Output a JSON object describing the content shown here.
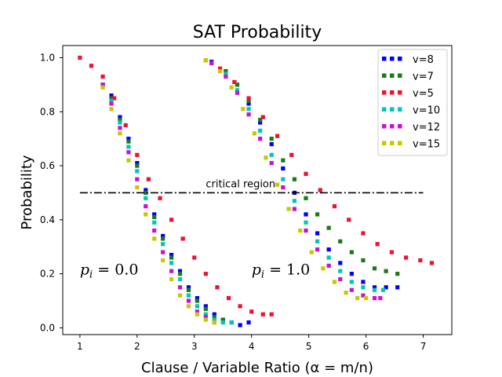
{
  "chart_data": {
    "type": "scatter",
    "title": "SAT Probability",
    "xlabel": "Clause / Variable Ratio (α = m/n)",
    "ylabel": "Probability",
    "xlim": [
      0.7,
      7.5
    ],
    "ylim": [
      -0.025,
      1.045
    ],
    "xticks": [
      1,
      2,
      3,
      4,
      5,
      6,
      7
    ],
    "yticks": [
      0.0,
      0.2,
      0.4,
      0.6,
      0.8,
      1.0
    ],
    "xtick_labels": [
      "1",
      "2",
      "3",
      "4",
      "5",
      "6",
      "7"
    ],
    "ytick_labels": [
      "0.0",
      "0.2",
      "0.4",
      "0.6",
      "0.8",
      "1.0"
    ],
    "legend_position": "top-right",
    "annotations": {
      "critical_label": "critical region",
      "critical_y": 0.5,
      "critical_x_range": [
        1.0,
        7.0
      ],
      "critical_label_x": 3.2,
      "panel_left": "p_i = 0.0",
      "panel_left_sub": "i",
      "panel_left_pre": "p",
      "panel_left_post": " = 0.0",
      "panel_left_pos": [
        1.0,
        0.2
      ],
      "panel_right_pre": "p",
      "panel_right_sub": "i",
      "panel_right_post": " = 1.0",
      "panel_right_pos": [
        4.0,
        0.2
      ]
    },
    "series": [
      {
        "name": "v=8",
        "color": "#0000ff",
        "left": [
          [
            1.4,
            0.9
          ],
          [
            1.55,
            0.86
          ],
          [
            1.7,
            0.78
          ],
          [
            1.85,
            0.7
          ],
          [
            2.0,
            0.61
          ],
          [
            2.15,
            0.51
          ],
          [
            2.3,
            0.42
          ],
          [
            2.45,
            0.34
          ],
          [
            2.6,
            0.27
          ],
          [
            2.75,
            0.21
          ],
          [
            2.9,
            0.15
          ],
          [
            3.05,
            0.11
          ],
          [
            3.2,
            0.08
          ],
          [
            3.35,
            0.05
          ],
          [
            3.5,
            0.03
          ],
          [
            3.65,
            0.02
          ],
          [
            3.8,
            0.01
          ],
          [
            3.95,
            0.02
          ]
        ],
        "right": [
          [
            3.3,
            0.985
          ],
          [
            3.55,
            0.95
          ],
          [
            3.75,
            0.9
          ],
          [
            3.95,
            0.83
          ],
          [
            4.15,
            0.76
          ],
          [
            4.35,
            0.68
          ],
          [
            4.55,
            0.59
          ],
          [
            4.75,
            0.5
          ],
          [
            4.95,
            0.42
          ],
          [
            5.15,
            0.35
          ],
          [
            5.35,
            0.29
          ],
          [
            5.55,
            0.24
          ],
          [
            5.75,
            0.2
          ],
          [
            5.95,
            0.17
          ],
          [
            6.15,
            0.15
          ],
          [
            6.35,
            0.15
          ],
          [
            6.55,
            0.15
          ]
        ]
      },
      {
        "name": "v=7",
        "color": "#1a7a1a",
        "left": [
          [
            1.4,
            0.9
          ],
          [
            1.55,
            0.85
          ],
          [
            1.7,
            0.77
          ],
          [
            1.85,
            0.69
          ],
          [
            2.0,
            0.6
          ],
          [
            2.15,
            0.5
          ],
          [
            2.3,
            0.41
          ],
          [
            2.45,
            0.33
          ],
          [
            2.6,
            0.26
          ],
          [
            2.75,
            0.2
          ],
          [
            2.9,
            0.14
          ],
          [
            3.05,
            0.1
          ],
          [
            3.2,
            0.07
          ],
          [
            3.35,
            0.04
          ],
          [
            3.5,
            0.03
          ]
        ],
        "right": [
          [
            3.3,
            0.98
          ],
          [
            3.55,
            0.95
          ],
          [
            3.75,
            0.9
          ],
          [
            3.95,
            0.84
          ],
          [
            4.15,
            0.77
          ],
          [
            4.35,
            0.7
          ],
          [
            4.55,
            0.62
          ],
          [
            4.75,
            0.55
          ],
          [
            4.95,
            0.48
          ],
          [
            5.15,
            0.42
          ],
          [
            5.35,
            0.37
          ],
          [
            5.55,
            0.32
          ],
          [
            5.75,
            0.28
          ],
          [
            5.95,
            0.25
          ],
          [
            6.15,
            0.22
          ],
          [
            6.35,
            0.21
          ],
          [
            6.55,
            0.2
          ]
        ]
      },
      {
        "name": "v=5",
        "color": "#ee1133",
        "left": [
          [
            1.0,
            1.0
          ],
          [
            1.2,
            0.97
          ],
          [
            1.4,
            0.93
          ],
          [
            1.6,
            0.85
          ],
          [
            1.8,
            0.75
          ],
          [
            2.0,
            0.64
          ],
          [
            2.2,
            0.55
          ],
          [
            2.4,
            0.48
          ],
          [
            2.6,
            0.4
          ],
          [
            2.8,
            0.33
          ],
          [
            3.0,
            0.26
          ],
          [
            3.2,
            0.2
          ],
          [
            3.4,
            0.15
          ],
          [
            3.6,
            0.11
          ],
          [
            3.8,
            0.08
          ],
          [
            4.0,
            0.06
          ],
          [
            4.2,
            0.05
          ],
          [
            4.35,
            0.05
          ]
        ],
        "right": [
          [
            3.2,
            0.99
          ],
          [
            3.45,
            0.96
          ],
          [
            3.7,
            0.91
          ],
          [
            3.95,
            0.85
          ],
          [
            4.2,
            0.78
          ],
          [
            4.45,
            0.71
          ],
          [
            4.7,
            0.64
          ],
          [
            4.95,
            0.57
          ],
          [
            5.2,
            0.51
          ],
          [
            5.45,
            0.45
          ],
          [
            5.7,
            0.4
          ],
          [
            5.95,
            0.35
          ],
          [
            6.2,
            0.31
          ],
          [
            6.45,
            0.28
          ],
          [
            6.7,
            0.26
          ],
          [
            6.95,
            0.25
          ],
          [
            7.15,
            0.24
          ]
        ]
      },
      {
        "name": "v=10",
        "color": "#00c8b4",
        "left": [
          [
            1.4,
            0.9
          ],
          [
            1.55,
            0.84
          ],
          [
            1.7,
            0.76
          ],
          [
            1.85,
            0.67
          ],
          [
            2.0,
            0.58
          ],
          [
            2.15,
            0.48
          ],
          [
            2.3,
            0.39
          ],
          [
            2.45,
            0.31
          ],
          [
            2.6,
            0.24
          ],
          [
            2.75,
            0.18
          ],
          [
            2.9,
            0.12
          ],
          [
            3.05,
            0.08
          ],
          [
            3.2,
            0.05
          ],
          [
            3.35,
            0.03
          ],
          [
            3.5,
            0.02
          ],
          [
            3.65,
            0.02
          ]
        ],
        "right": [
          [
            3.3,
            0.98
          ],
          [
            3.55,
            0.94
          ],
          [
            3.75,
            0.88
          ],
          [
            3.95,
            0.81
          ],
          [
            4.15,
            0.73
          ],
          [
            4.35,
            0.64
          ],
          [
            4.55,
            0.55
          ],
          [
            4.75,
            0.47
          ],
          [
            4.95,
            0.39
          ],
          [
            5.15,
            0.32
          ],
          [
            5.35,
            0.26
          ],
          [
            5.55,
            0.21
          ],
          [
            5.75,
            0.17
          ],
          [
            5.95,
            0.15
          ],
          [
            6.15,
            0.14
          ],
          [
            6.3,
            0.14
          ]
        ]
      },
      {
        "name": "v=12",
        "color": "#cc11cc",
        "left": [
          [
            1.4,
            0.9
          ],
          [
            1.55,
            0.83
          ],
          [
            1.7,
            0.74
          ],
          [
            1.85,
            0.65
          ],
          [
            2.0,
            0.55
          ],
          [
            2.15,
            0.45
          ],
          [
            2.3,
            0.36
          ],
          [
            2.45,
            0.28
          ],
          [
            2.6,
            0.21
          ],
          [
            2.75,
            0.15
          ],
          [
            2.9,
            0.1
          ],
          [
            3.05,
            0.06
          ],
          [
            3.2,
            0.04
          ],
          [
            3.35,
            0.02
          ]
        ],
        "right": [
          [
            3.3,
            0.98
          ],
          [
            3.55,
            0.93
          ],
          [
            3.75,
            0.87
          ],
          [
            3.95,
            0.79
          ],
          [
            4.15,
            0.7
          ],
          [
            4.35,
            0.61
          ],
          [
            4.55,
            0.52
          ],
          [
            4.75,
            0.44
          ],
          [
            4.95,
            0.36
          ],
          [
            5.15,
            0.29
          ],
          [
            5.35,
            0.23
          ],
          [
            5.55,
            0.18
          ],
          [
            5.75,
            0.14
          ],
          [
            5.95,
            0.12
          ],
          [
            6.15,
            0.11
          ],
          [
            6.25,
            0.11
          ]
        ]
      },
      {
        "name": "v=15",
        "color": "#c8c800",
        "left": [
          [
            1.4,
            0.89
          ],
          [
            1.55,
            0.81
          ],
          [
            1.7,
            0.72
          ],
          [
            1.85,
            0.62
          ],
          [
            2.0,
            0.52
          ],
          [
            2.15,
            0.42
          ],
          [
            2.3,
            0.33
          ],
          [
            2.45,
            0.25
          ],
          [
            2.6,
            0.18
          ],
          [
            2.75,
            0.12
          ],
          [
            2.9,
            0.08
          ],
          [
            3.05,
            0.05
          ],
          [
            3.2,
            0.03
          ],
          [
            3.35,
            0.02
          ]
        ],
        "right": [
          [
            3.2,
            0.99
          ],
          [
            3.45,
            0.95
          ],
          [
            3.65,
            0.89
          ],
          [
            3.85,
            0.81
          ],
          [
            4.05,
            0.72
          ],
          [
            4.25,
            0.63
          ],
          [
            4.45,
            0.53
          ],
          [
            4.65,
            0.44
          ],
          [
            4.85,
            0.36
          ],
          [
            5.05,
            0.28
          ],
          [
            5.25,
            0.22
          ],
          [
            5.45,
            0.17
          ],
          [
            5.65,
            0.13
          ],
          [
            5.85,
            0.11
          ],
          [
            6.0,
            0.11
          ]
        ]
      }
    ]
  }
}
